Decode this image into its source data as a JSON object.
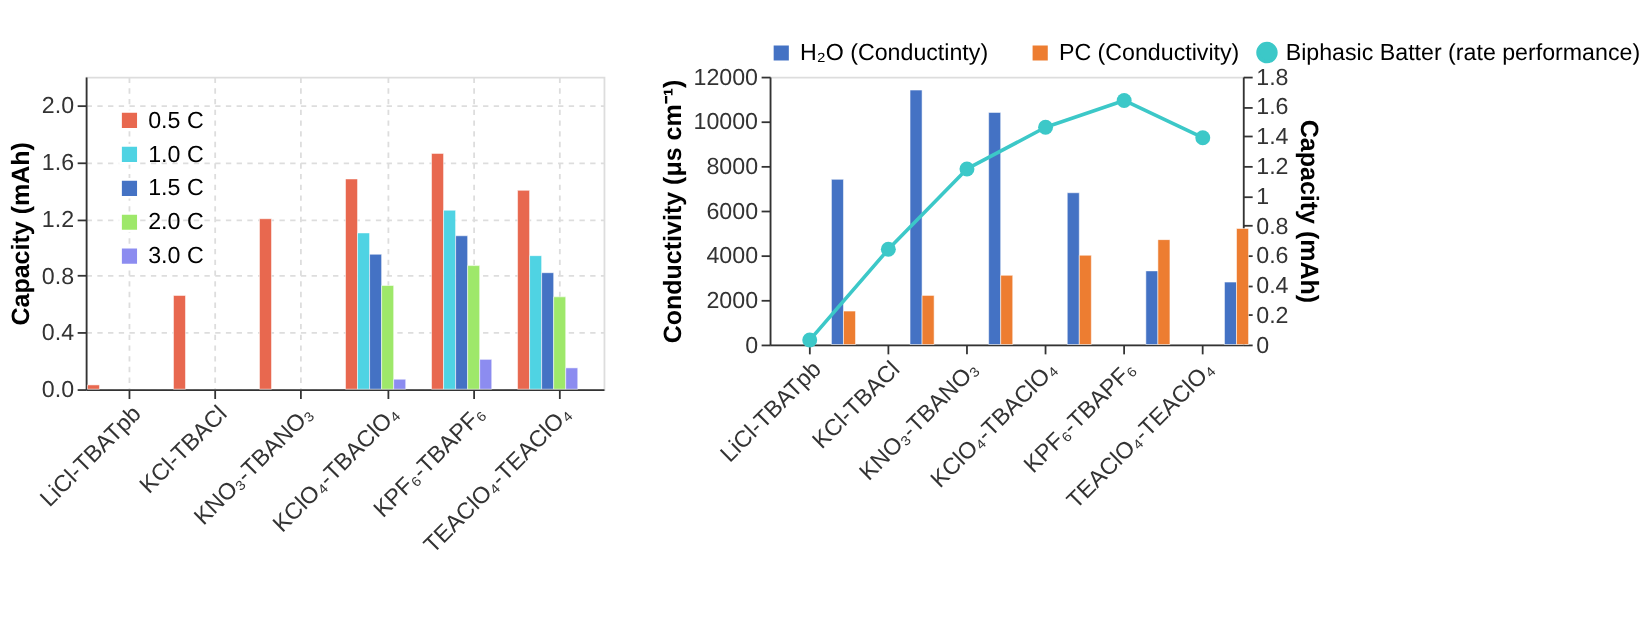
{
  "chart_data": [
    {
      "type": "bar",
      "ylabel": "Capacity (mAh)",
      "categories": [
        "LiCl-TBATpb",
        "KCl-TBACl",
        "KNO₃-TBANO₃",
        "KClO₄-TBAClO₄",
        "KPF₆-TBAPF₆",
        "TEAClO₄-TEAClO₄"
      ],
      "ylim": [
        0,
        2.2
      ],
      "yticks": [
        {
          "value": 0,
          "label": "0.0"
        },
        0.4,
        0.8,
        1.2,
        1.6,
        {
          "value": 2,
          "label": "2.0"
        }
      ],
      "grid": true,
      "legend": "top left",
      "series": [
        {
          "name": "0.5 C",
          "color": "#e8684f",
          "values": [
            0.03,
            0.66,
            1.2,
            1.48,
            1.66,
            1.4
          ]
        },
        {
          "name": "1.0 C",
          "color": "#4fd3e3",
          "values": [
            null,
            null,
            null,
            1.1,
            1.26,
            0.94
          ]
        },
        {
          "name": "1.5 C",
          "color": "#4472c4",
          "values": [
            null,
            null,
            null,
            0.95,
            1.08,
            0.82
          ]
        },
        {
          "name": "2.0 C",
          "color": "#9ee86a",
          "values": [
            null,
            null,
            null,
            0.73,
            0.87,
            0.65
          ]
        },
        {
          "name": "3.0 C",
          "color": "#8c8cf0",
          "values": [
            null,
            null,
            null,
            0.07,
            0.21,
            0.15
          ]
        }
      ]
    },
    {
      "type": "bar",
      "ylabel": "Conductivity (μs cm⁻¹)",
      "y2label": "Capacity (mAh)",
      "categories": [
        "LiCl-TBATpb",
        "KCl-TBACl",
        "KNO₃-TBANO₃",
        "KClO₄-TBAClO₄",
        "KPF₆-TBAPF₆",
        "TEAClO₄-TEAClO₄"
      ],
      "ylim": [
        0,
        12000
      ],
      "yticks": [
        0,
        2000,
        4000,
        6000,
        8000,
        10000,
        12000
      ],
      "y2lim": [
        0,
        1.8
      ],
      "y2ticks": [
        0,
        0.2,
        0.4,
        0.6,
        0.8,
        1,
        1.2,
        1.4,
        1.6,
        1.8
      ],
      "grid": false,
      "legend": "top",
      "series": [
        {
          "name": "H₂O (Conductinty)",
          "color": "#4472c4",
          "values": [
            7400,
            11400,
            10400,
            6800,
            3300,
            2800
          ]
        },
        {
          "name": "PC (Conductivity)",
          "color": "#ed7d31",
          "values": [
            1500,
            2200,
            3100,
            4000,
            4700,
            5200
          ]
        },
        {
          "name": "Biphasic Batter (rate performance)",
          "type": "line",
          "axis": "y2",
          "marker": "circle",
          "color": "#3cc8c8",
          "values": [
            0.03,
            0.64,
            1.18,
            1.46,
            1.64,
            1.39
          ]
        }
      ]
    }
  ]
}
